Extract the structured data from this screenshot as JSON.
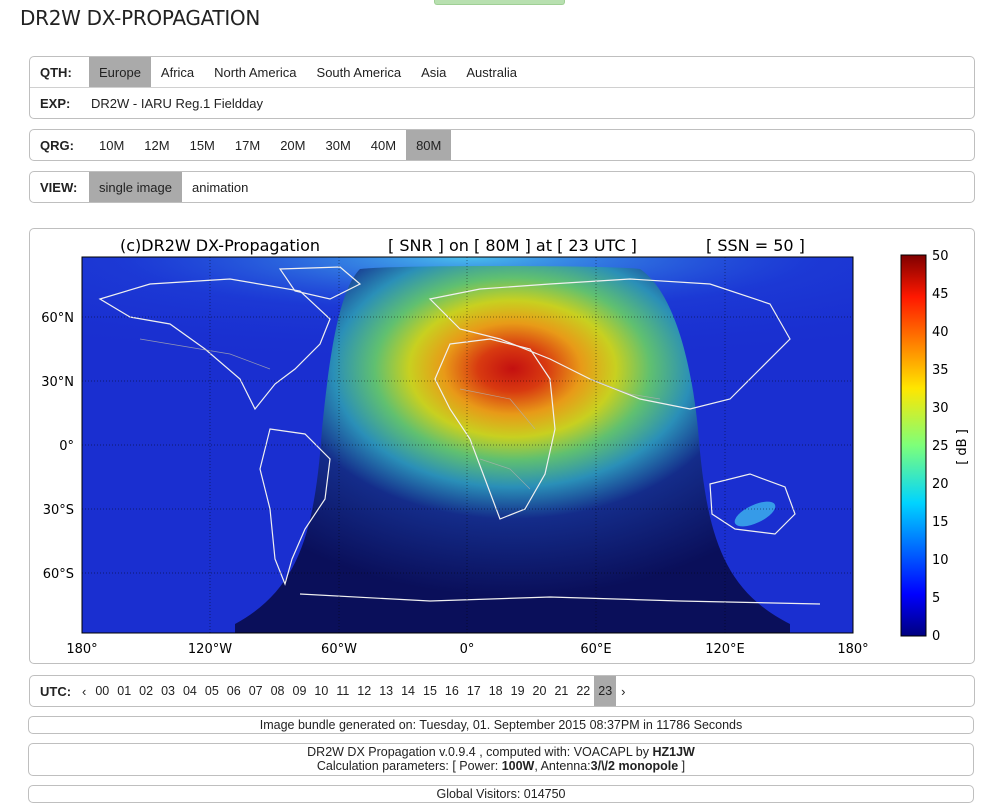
{
  "site": {
    "title": "DR2W DX-PROPAGATION"
  },
  "qth": {
    "label": "QTH:",
    "options": [
      "Europe",
      "Africa",
      "North America",
      "South America",
      "Asia",
      "Australia"
    ],
    "selected": "Europe"
  },
  "exp": {
    "label": "EXP:",
    "value": "DR2W - IARU Reg.1 Fieldday"
  },
  "qrg": {
    "label": "QRG:",
    "options": [
      "10M",
      "12M",
      "15M",
      "17M",
      "20M",
      "30M",
      "40M",
      "80M"
    ],
    "selected": "80M"
  },
  "view": {
    "label": "VIEW:",
    "options": [
      "single image",
      "animation"
    ],
    "selected": "single image"
  },
  "map": {
    "title_left": "(c)DR2W DX-Propagation",
    "title_mid": "[ SNR ] on [ 80M ] at [ 23 UTC ]",
    "title_right": "[ SSN = 50 ]",
    "lat_labels": [
      "60°N",
      "30°N",
      "0°",
      "30°S",
      "60°S"
    ],
    "lon_labels": [
      "180°",
      "120°W",
      "60°W",
      "0°",
      "60°E",
      "120°E",
      "180°"
    ],
    "colorbar": {
      "ticks": [
        "50",
        "45",
        "40",
        "35",
        "30",
        "25",
        "20",
        "15",
        "10",
        "5",
        "0"
      ],
      "unit": "[ dB ]"
    },
    "colors": {
      "ocean": "#1a2fd0",
      "night": "#0a0f5a",
      "hot": "#b01010",
      "warm": "#e0c020",
      "mid": "#30c090",
      "cool": "#40c0f0"
    }
  },
  "utc": {
    "label": "UTC:",
    "prev": "‹",
    "next": "›",
    "hours": [
      "00",
      "01",
      "02",
      "03",
      "04",
      "05",
      "06",
      "07",
      "08",
      "09",
      "10",
      "11",
      "12",
      "13",
      "14",
      "15",
      "16",
      "17",
      "18",
      "19",
      "20",
      "21",
      "22",
      "23"
    ],
    "selected": "23"
  },
  "footer": {
    "generated": "Image bundle generated on: Tuesday, 01. September 2015 08:37PM in 11786 Seconds",
    "version_prefix": "DR2W DX Propagation v.0.9.4 , computed with: VOACAPL by ",
    "version_author": "HZ1JW",
    "params_prefix": "Calculation parameters: [ Power: ",
    "params_power": "100W",
    "params_mid": ", Antenna:",
    "params_antenna": "3/\\/2 monopole",
    "params_suffix": " ]",
    "visitors": "Global Visitors: 014750"
  }
}
